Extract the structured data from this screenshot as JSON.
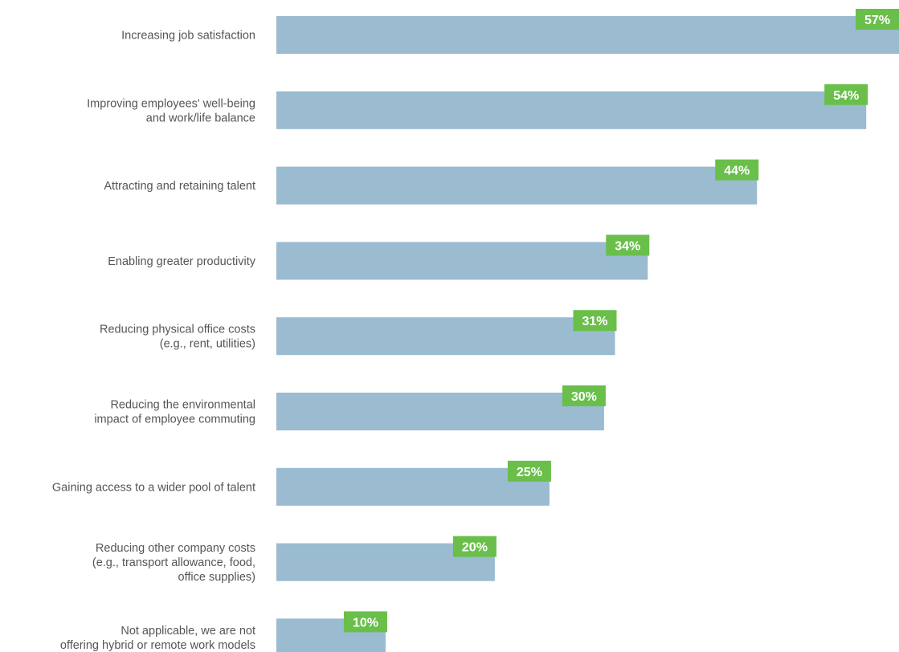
{
  "chart_data": {
    "type": "bar",
    "orientation": "horizontal",
    "categories": [
      [
        "Increasing job satisfaction"
      ],
      [
        "Improving employees' well-being",
        "and work/life balance"
      ],
      [
        "Attracting and retaining talent"
      ],
      [
        "Enabling greater productivity"
      ],
      [
        "Reducing physical office costs",
        "(e.g., rent, utilities)"
      ],
      [
        "Reducing the environmental",
        "impact of employee commuting"
      ],
      [
        "Gaining access to a wider pool of talent"
      ],
      [
        "Reducing other company costs",
        "(e.g., transport allowance, food,",
        "office supplies)"
      ],
      [
        "Not applicable, we are not",
        "offering hybrid or remote work models"
      ]
    ],
    "values": [
      57,
      54,
      44,
      34,
      31,
      30,
      25,
      20,
      10
    ],
    "value_labels": [
      "57%",
      "54%",
      "44%",
      "34%",
      "31%",
      "30%",
      "25%",
      "20%",
      "10%"
    ],
    "xlim": [
      0,
      57
    ],
    "grid": false,
    "legend": "none",
    "colors": {
      "bar": "#9abbd0",
      "label_box": "#6abf4b",
      "label_text": "#ffffff",
      "category_text": "#555555"
    }
  }
}
